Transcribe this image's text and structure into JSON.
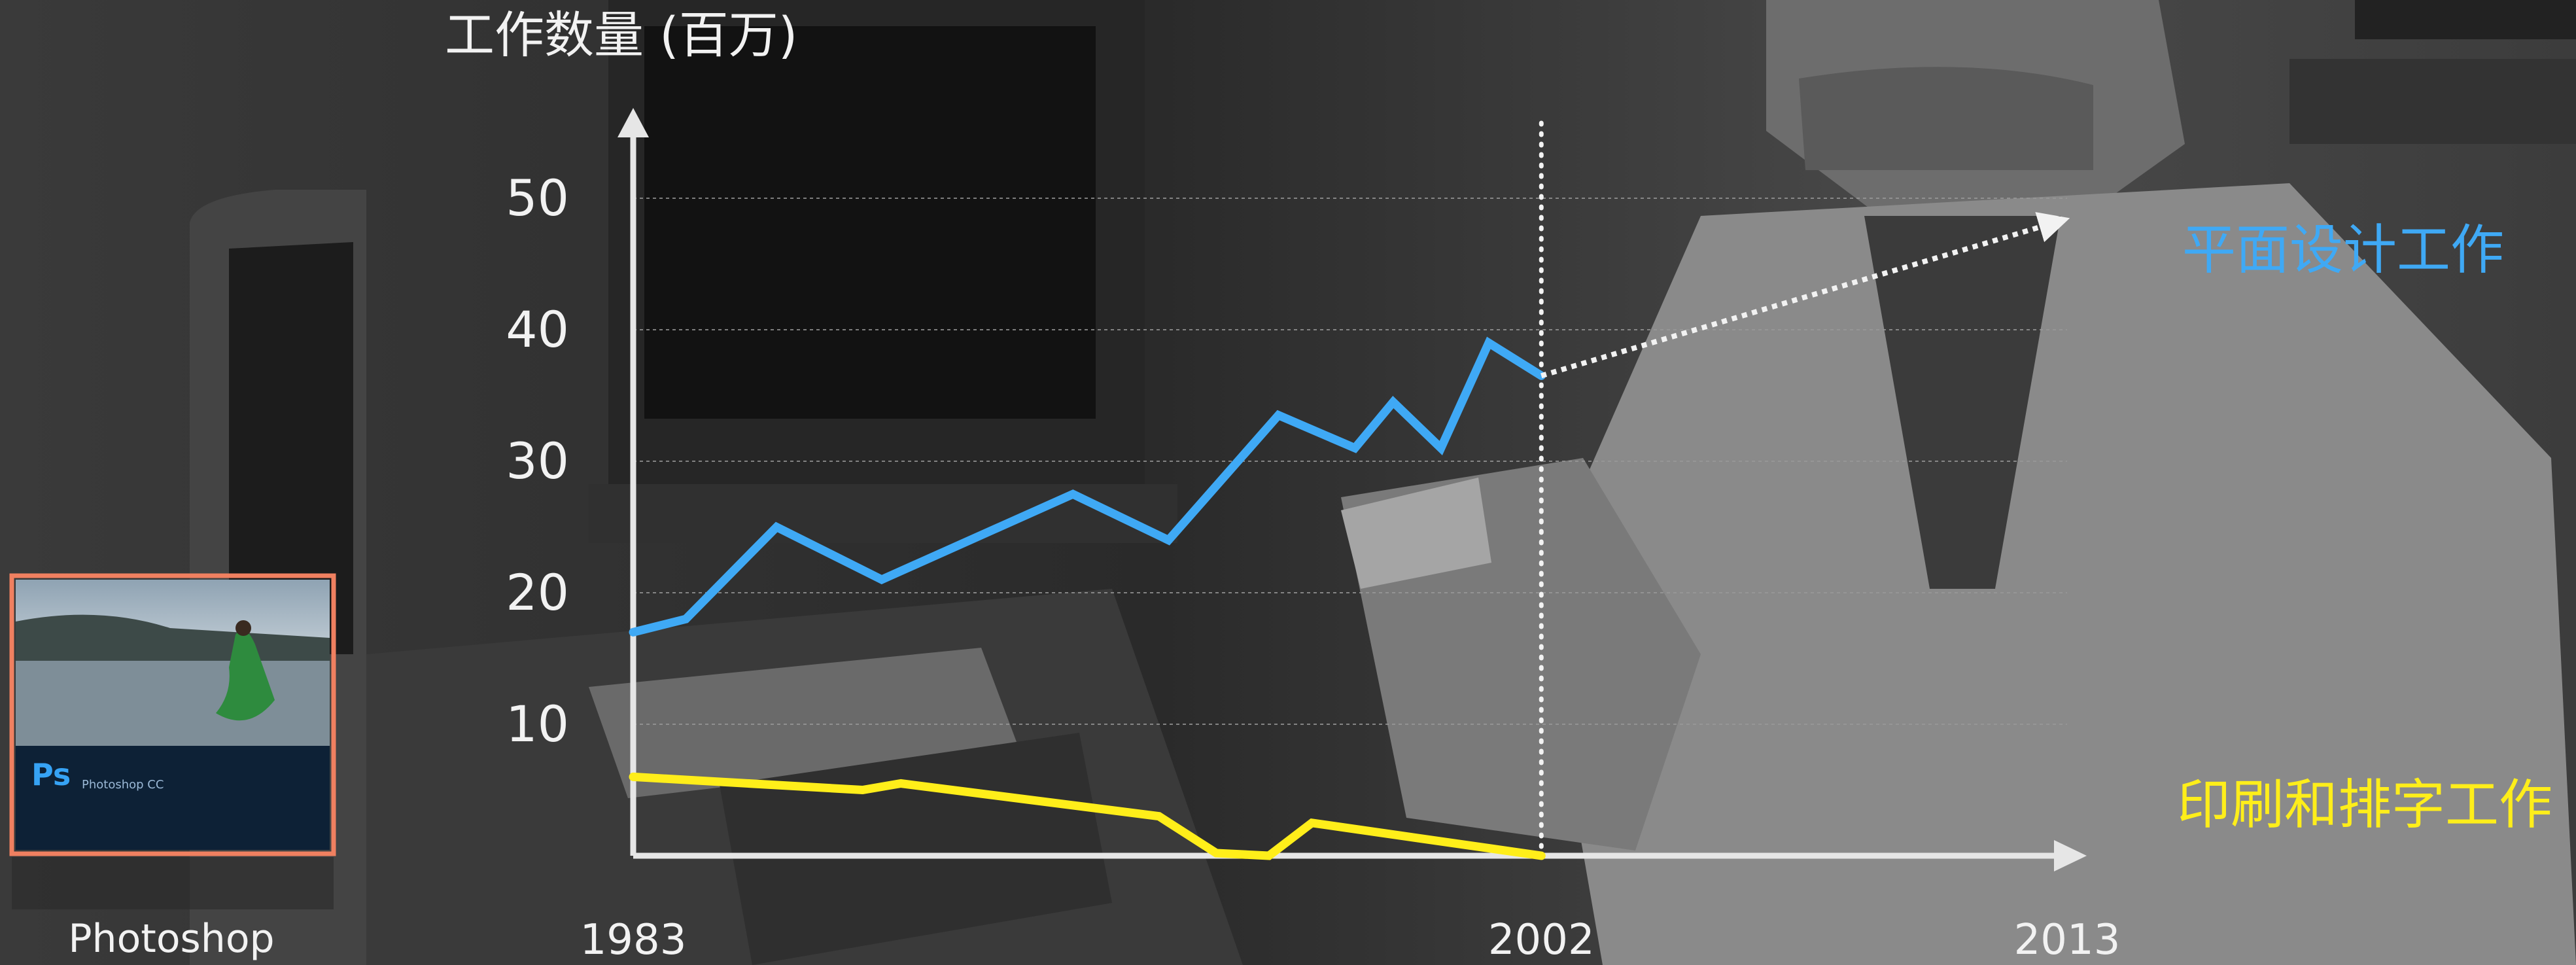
{
  "chart_data": {
    "type": "line",
    "title": "",
    "ylabel": "工作数量 (百万)",
    "xlabel": "",
    "x_tick_labels": [
      {
        "label": "1983",
        "value": 1983
      },
      {
        "label": "2002",
        "value": 2002
      },
      {
        "label": "2013",
        "value": 2013
      }
    ],
    "y_ticks": [
      10,
      20,
      30,
      40,
      50
    ],
    "xlim": [
      1983,
      2013
    ],
    "ylim": [
      0,
      57
    ],
    "grid": true,
    "marker_line": {
      "x": 2002,
      "style": "dotted"
    },
    "series": [
      {
        "name": "平面设计工作",
        "color": "#3fa9f5",
        "x": [
          1983,
          1984.1,
          1986,
          1988.2,
          1992.2,
          1994.2,
          1996.5,
          1998.1,
          1998.9,
          1999.9,
          2000.9,
          2002
        ],
        "y": [
          17,
          18,
          25,
          21,
          27.5,
          24,
          33.5,
          31,
          34.5,
          31,
          39,
          36.5
        ]
      },
      {
        "name": "印刷和排字工作",
        "color": "#ffee1a",
        "x": [
          1983,
          1987.8,
          1988.6,
          1994,
          1995.2,
          1996.3,
          1997.2,
          2002
        ],
        "y": [
          6,
          5,
          5.5,
          3,
          0.2,
          0,
          2.5,
          0
        ]
      }
    ],
    "projection": {
      "series": "平面设计工作",
      "from_x": 2002,
      "from_y": 36.5,
      "to_x": 2013,
      "to_y": 48.5,
      "style": "dotted-arrow"
    }
  },
  "thumbnail": {
    "caption": "Photoshop",
    "app_badge": "Ps",
    "product_name": "Photoshop CC",
    "accent_color": "#f08060"
  }
}
